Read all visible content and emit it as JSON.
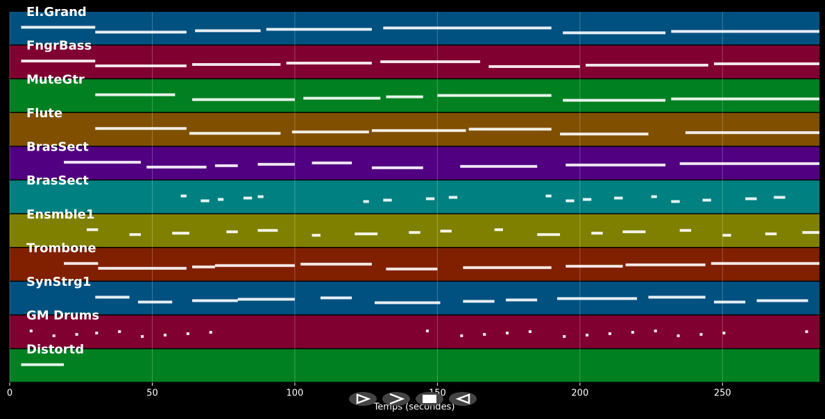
{
  "chart_data": {
    "type": "piano-roll",
    "xlabel": "Temps (secondes)",
    "xlim": [
      0,
      284
    ],
    "xticks": [
      0,
      50,
      100,
      150,
      200,
      250
    ],
    "grid": true,
    "note_color": "#ffffff",
    "series": [
      {
        "name": "El.Grand",
        "color": "#005080",
        "segments": [
          [
            4,
            30
          ],
          [
            30,
            62
          ],
          [
            65,
            88
          ],
          [
            90,
            127
          ],
          [
            131,
            190
          ],
          [
            194,
            230
          ],
          [
            232,
            284
          ]
        ]
      },
      {
        "name": "FngrBass",
        "color": "#800030",
        "segments": [
          [
            4,
            30
          ],
          [
            30,
            62
          ],
          [
            64,
            95
          ],
          [
            97,
            127
          ],
          [
            130,
            165
          ],
          [
            168,
            200
          ],
          [
            202,
            245
          ],
          [
            247,
            284
          ]
        ]
      },
      {
        "name": "MuteGtr",
        "color": "#008020",
        "segments": [
          [
            30,
            58
          ],
          [
            64,
            100
          ],
          [
            103,
            130
          ],
          [
            132,
            145
          ],
          [
            150,
            190
          ],
          [
            194,
            230
          ],
          [
            232,
            284
          ]
        ]
      },
      {
        "name": "Flute",
        "color": "#805000",
        "segments": [
          [
            30,
            62
          ],
          [
            63,
            95
          ],
          [
            99,
            126
          ],
          [
            127,
            160
          ],
          [
            161,
            190
          ],
          [
            193,
            224
          ],
          [
            237,
            284
          ]
        ]
      },
      {
        "name": "BrasSect",
        "color": "#500080",
        "segments": [
          [
            19,
            46
          ],
          [
            48,
            69
          ],
          [
            72,
            80
          ],
          [
            87,
            100
          ],
          [
            106,
            120
          ],
          [
            127,
            145
          ],
          [
            158,
            185
          ],
          [
            195,
            230
          ],
          [
            235,
            284
          ]
        ]
      },
      {
        "name": "BrasSect",
        "color": "#008080",
        "segments": [
          [
            60,
            62
          ],
          [
            67,
            70
          ],
          [
            73,
            75
          ],
          [
            82,
            85
          ],
          [
            87,
            89
          ],
          [
            124,
            126
          ],
          [
            131,
            134
          ],
          [
            146,
            149
          ],
          [
            154,
            157
          ],
          [
            188,
            190
          ],
          [
            195,
            198
          ],
          [
            201,
            204
          ],
          [
            212,
            215
          ],
          [
            225,
            227
          ],
          [
            232,
            235
          ],
          [
            243,
            246
          ],
          [
            258,
            262
          ],
          [
            268,
            272
          ]
        ]
      },
      {
        "name": "Ensmble1",
        "color": "#808000",
        "segments": [
          [
            27,
            31
          ],
          [
            42,
            46
          ],
          [
            57,
            63
          ],
          [
            76,
            80
          ],
          [
            87,
            94
          ],
          [
            106,
            109
          ],
          [
            121,
            129
          ],
          [
            140,
            144
          ],
          [
            151,
            155
          ],
          [
            170,
            173
          ],
          [
            185,
            193
          ],
          [
            204,
            208
          ],
          [
            215,
            223
          ],
          [
            235,
            239
          ],
          [
            250,
            253
          ],
          [
            265,
            269
          ],
          [
            278,
            284
          ]
        ]
      },
      {
        "name": "Trombone",
        "color": "#802000",
        "segments": [
          [
            19,
            31
          ],
          [
            31,
            62
          ],
          [
            64,
            72
          ],
          [
            72,
            100
          ],
          [
            102,
            127
          ],
          [
            132,
            150
          ],
          [
            159,
            190
          ],
          [
            195,
            215
          ],
          [
            216,
            244
          ],
          [
            246,
            284
          ]
        ]
      },
      {
        "name": "SynStrg1",
        "color": "#005080",
        "segments": [
          [
            30,
            42
          ],
          [
            45,
            57
          ],
          [
            64,
            80
          ],
          [
            80,
            100
          ],
          [
            109,
            120
          ],
          [
            128,
            151
          ],
          [
            159,
            170
          ],
          [
            174,
            185
          ],
          [
            192,
            220
          ],
          [
            224,
            244
          ],
          [
            247,
            258
          ],
          [
            262,
            280
          ]
        ]
      },
      {
        "name": "GM Drums",
        "color": "#800030",
        "segments": [
          [
            7,
            8
          ],
          [
            15,
            16
          ],
          [
            23,
            24
          ],
          [
            30,
            31
          ],
          [
            38,
            39
          ],
          [
            46,
            47
          ],
          [
            54,
            55
          ],
          [
            62,
            63
          ],
          [
            70,
            71
          ],
          [
            146,
            147
          ],
          [
            158,
            159
          ],
          [
            166,
            167
          ],
          [
            174,
            175
          ],
          [
            182,
            183
          ],
          [
            194,
            195
          ],
          [
            202,
            203
          ],
          [
            210,
            211
          ],
          [
            218,
            219
          ],
          [
            226,
            227
          ],
          [
            234,
            235
          ],
          [
            242,
            243
          ],
          [
            250,
            251
          ],
          [
            279,
            280
          ]
        ]
      },
      {
        "name": "Distortd",
        "color": "#008020",
        "segments": [
          [
            4,
            19
          ]
        ]
      }
    ]
  }
}
